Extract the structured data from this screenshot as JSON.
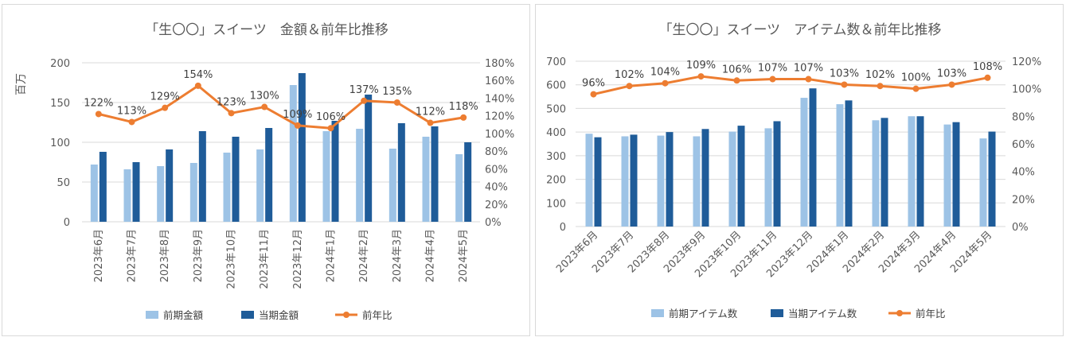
{
  "chart_data": [
    {
      "type": "bar",
      "title": "「生〇〇」スイーツ　金額＆前年比推移",
      "ylabel": "百万",
      "categories": [
        "2023年6月",
        "2023年7月",
        "2023年8月",
        "2023年9月",
        "2023年10月",
        "2023年11月",
        "2023年12月",
        "2024年1月",
        "2024年2月",
        "2024年3月",
        "2024年4月",
        "2024年5月"
      ],
      "ylim": [
        0,
        200
      ],
      "yticks": [
        "0",
        "50",
        "100",
        "150",
        "200"
      ],
      "y2lim": [
        0,
        180
      ],
      "y2ticks": [
        "0%",
        "20%",
        "40%",
        "60%",
        "80%",
        "100%",
        "120%",
        "140%",
        "160%",
        "180%"
      ],
      "series": [
        {
          "name": "前期金額",
          "kind": "bar",
          "color": "#9dc3e6",
          "values": [
            72,
            66,
            70,
            74,
            87,
            91,
            172,
            114,
            117,
            92,
            107,
            85
          ]
        },
        {
          "name": "当期金額",
          "kind": "bar",
          "color": "#1f5c99",
          "values": [
            88,
            75,
            91,
            114,
            107,
            118,
            187,
            127,
            160,
            124,
            120,
            100
          ]
        },
        {
          "name": "前年比",
          "kind": "line",
          "color": "#ed7d31",
          "axis": "right",
          "values": [
            122,
            113,
            129,
            154,
            123,
            130,
            109,
            106,
            137,
            135,
            112,
            118
          ],
          "labels": [
            "122%",
            "113%",
            "129%",
            "154%",
            "123%",
            "130%",
            "109%",
            "106%",
            "137%",
            "135%",
            "112%",
            "118%"
          ]
        }
      ]
    },
    {
      "type": "bar",
      "title": "「生〇〇」スイーツ　アイテム数＆前年比推移",
      "categories": [
        "2023年6月",
        "2023年7月",
        "2023年8月",
        "2023年9月",
        "2023年10月",
        "2023年11月",
        "2023年12月",
        "2024年1月",
        "2024年2月",
        "2024年3月",
        "2024年4月",
        "2024年5月"
      ],
      "ylim": [
        0,
        700
      ],
      "yticks": [
        "0",
        "100",
        "200",
        "300",
        "400",
        "500",
        "600",
        "700"
      ],
      "y2lim": [
        0,
        120
      ],
      "y2ticks": [
        "0%",
        "20%",
        "40%",
        "60%",
        "80%",
        "100%",
        "120%"
      ],
      "series": [
        {
          "name": "前期アイテム数",
          "kind": "bar",
          "color": "#9dc3e6",
          "values": [
            393,
            382,
            385,
            382,
            402,
            416,
            545,
            518,
            450,
            467,
            432,
            373
          ]
        },
        {
          "name": "当期アイテム数",
          "kind": "bar",
          "color": "#1f5c99",
          "values": [
            378,
            389,
            400,
            413,
            427,
            446,
            585,
            534,
            460,
            467,
            442,
            402
          ]
        },
        {
          "name": "前年比",
          "kind": "line",
          "color": "#ed7d31",
          "axis": "right",
          "values": [
            96,
            102,
            104,
            109,
            106,
            107,
            107,
            103,
            102,
            100,
            103,
            108
          ],
          "labels": [
            "96%",
            "102%",
            "104%",
            "109%",
            "106%",
            "107%",
            "107%",
            "103%",
            "102%",
            "100%",
            "103%",
            "108%"
          ]
        }
      ]
    }
  ]
}
